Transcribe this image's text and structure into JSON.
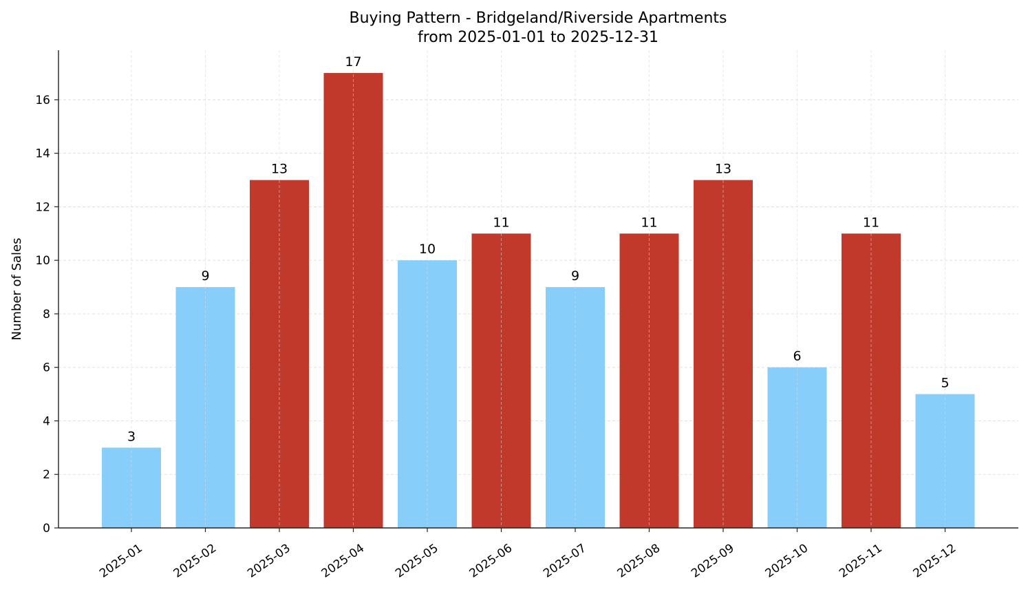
{
  "chart_data": {
    "type": "bar",
    "title": "Buying Pattern - Bridgeland/Riverside Apartments",
    "subtitle": "from 2025-01-01 to 2025-12-31",
    "xlabel": "",
    "ylabel": "Number of Sales",
    "categories": [
      "2025-01",
      "2025-02",
      "2025-03",
      "2025-04",
      "2025-05",
      "2025-06",
      "2025-07",
      "2025-08",
      "2025-09",
      "2025-10",
      "2025-11",
      "2025-12"
    ],
    "values": [
      3,
      9,
      13,
      17,
      10,
      11,
      9,
      11,
      13,
      6,
      11,
      5
    ],
    "bar_colors": [
      "#87CEFA",
      "#87CEFA",
      "#C0392B",
      "#C0392B",
      "#87CEFA",
      "#C0392B",
      "#87CEFA",
      "#C0392B",
      "#C0392B",
      "#87CEFA",
      "#C0392B",
      "#87CEFA"
    ],
    "colors": {
      "low": "#87CEFA",
      "high": "#C0392B"
    },
    "yticks": [
      0,
      2,
      4,
      6,
      8,
      10,
      12,
      14,
      16
    ],
    "ylim": [
      0,
      17.85
    ],
    "grid": true,
    "data_labels": true,
    "legend": "none"
  }
}
